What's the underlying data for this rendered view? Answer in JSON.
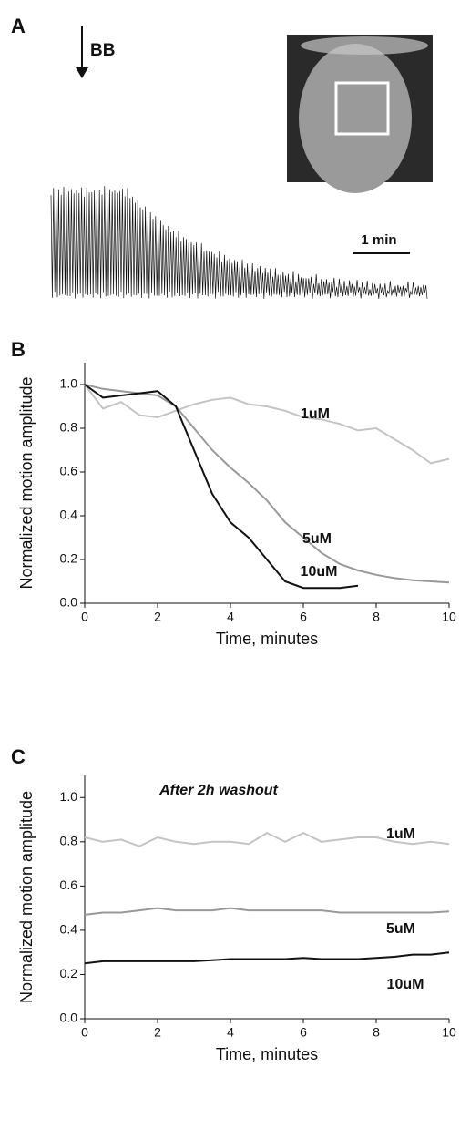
{
  "panel_a": {
    "label": "A",
    "annotation": "BB",
    "scale_bar": "1 min"
  },
  "chart_data": [
    {
      "type": "line",
      "label": "B",
      "xlabel": "Time, minutes",
      "ylabel": "Normalized motion amplitude",
      "x": [
        0,
        0.5,
        1,
        1.5,
        2,
        2.5,
        3,
        3.5,
        4,
        4.5,
        5,
        5.5,
        6,
        6.5,
        7,
        7.5,
        8,
        8.5,
        9,
        9.5,
        10
      ],
      "xlim": [
        0,
        10
      ],
      "xticks": [
        0,
        2,
        4,
        6,
        8,
        10
      ],
      "ylim": [
        0,
        1.1
      ],
      "yticks": [
        {
          "value": 0,
          "label": "0.0"
        },
        0.2,
        0.4,
        0.6,
        0.8,
        {
          "value": 1,
          "label": "1.0"
        }
      ],
      "series": [
        {
          "name": "1uM",
          "color": "#c4c4c4",
          "values": [
            1.0,
            0.89,
            0.92,
            0.86,
            0.85,
            0.88,
            0.91,
            0.93,
            0.94,
            0.91,
            0.9,
            0.88,
            0.85,
            0.84,
            0.82,
            0.79,
            0.8,
            0.75,
            0.7,
            0.64,
            0.66
          ]
        },
        {
          "name": "5uM",
          "color": "#999999",
          "values": [
            1.0,
            0.98,
            0.97,
            0.96,
            0.95,
            0.9,
            0.8,
            0.7,
            0.62,
            0.55,
            0.47,
            0.37,
            0.3,
            0.23,
            0.18,
            0.15,
            0.13,
            0.115,
            0.105,
            0.1,
            0.095
          ]
        },
        {
          "name": "10uM",
          "color": "#111111",
          "values": [
            1.0,
            0.94,
            0.95,
            0.96,
            0.97,
            0.9,
            0.7,
            0.5,
            0.37,
            0.3,
            0.2,
            0.1,
            0.07,
            0.07,
            0.07,
            0.08,
            null,
            null,
            null,
            null,
            null
          ]
        }
      ]
    },
    {
      "type": "line",
      "label": "C",
      "annotation": "After 2h washout",
      "xlabel": "Time, minutes",
      "ylabel": "Normalized motion amplitude",
      "x": [
        0,
        0.5,
        1,
        1.5,
        2,
        2.5,
        3,
        3.5,
        4,
        4.5,
        5,
        5.5,
        6,
        6.5,
        7,
        7.5,
        8,
        8.5,
        9,
        9.5,
        10
      ],
      "xlim": [
        0,
        10
      ],
      "xticks": [
        0,
        2,
        4,
        6,
        8,
        10
      ],
      "ylim": [
        0,
        1.1
      ],
      "yticks": [
        {
          "value": 0,
          "label": "0.0"
        },
        0.2,
        0.4,
        0.6,
        0.8,
        {
          "value": 1,
          "label": "1.0"
        }
      ],
      "series": [
        {
          "name": "1uM",
          "color": "#c4c4c4",
          "values": [
            0.82,
            0.8,
            0.81,
            0.78,
            0.82,
            0.8,
            0.79,
            0.8,
            0.8,
            0.79,
            0.84,
            0.8,
            0.84,
            0.8,
            0.81,
            0.82,
            0.82,
            0.8,
            0.79,
            0.8,
            0.79
          ]
        },
        {
          "name": "5uM",
          "color": "#999999",
          "values": [
            0.47,
            0.48,
            0.48,
            0.49,
            0.5,
            0.49,
            0.49,
            0.49,
            0.5,
            0.49,
            0.49,
            0.49,
            0.49,
            0.49,
            0.48,
            0.48,
            0.48,
            0.48,
            0.48,
            0.48,
            0.485
          ]
        },
        {
          "name": "10uM",
          "color": "#111111",
          "values": [
            0.25,
            0.26,
            0.26,
            0.26,
            0.26,
            0.26,
            0.26,
            0.265,
            0.27,
            0.27,
            0.27,
            0.27,
            0.275,
            0.27,
            0.27,
            0.27,
            0.275,
            0.28,
            0.29,
            0.29,
            0.3
          ]
        }
      ]
    }
  ]
}
